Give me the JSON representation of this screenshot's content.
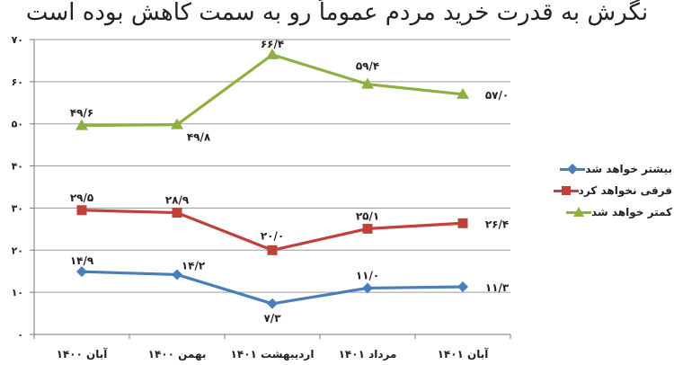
{
  "header_text": "نگرش به قدرت خرید مردم عموماً رو به سمت کاهش بوده است",
  "chart_data": {
    "type": "line",
    "title": "",
    "categories": [
      "آبان ۱۴۰۰",
      "بهمن ۱۴۰۰",
      "اردیبهشت ۱۴۰۱",
      "مرداد ۱۴۰۱",
      "آبان ۱۴۰۱"
    ],
    "ylim": [
      0,
      70
    ],
    "yticks": [
      "۰",
      "۱۰",
      "۲۰",
      "۳۰",
      "۴۰",
      "۵۰",
      "۶۰",
      "۷۰"
    ],
    "grid": true,
    "legend_position": "right",
    "series": [
      {
        "name": "بیشتر خواهد شد",
        "color": "#4a7ebb",
        "marker": "diamond",
        "values": [
          14.9,
          14.2,
          7.3,
          11.0,
          11.3
        ],
        "labels": [
          "۱۴/۹",
          "۱۴/۲",
          "۷/۳",
          "۱۱/۰",
          "۱۱/۳"
        ]
      },
      {
        "name": "فرقی نخواهد کرد",
        "color": "#c0403c",
        "marker": "square",
        "values": [
          29.5,
          28.9,
          20.0,
          25.1,
          26.4
        ],
        "labels": [
          "۲۹/۵",
          "۲۸/۹",
          "۲۰/۰",
          "۲۵/۱",
          "۲۶/۴"
        ]
      },
      {
        "name": "کمتر خواهد شد",
        "color": "#8db040",
        "marker": "triangle",
        "values": [
          49.6,
          49.8,
          66.4,
          59.4,
          57.0
        ],
        "labels": [
          "۴۹/۶",
          "۴۹/۸",
          "۶۶/۴",
          "۵۹/۴",
          "۵۷/۰"
        ]
      }
    ]
  }
}
